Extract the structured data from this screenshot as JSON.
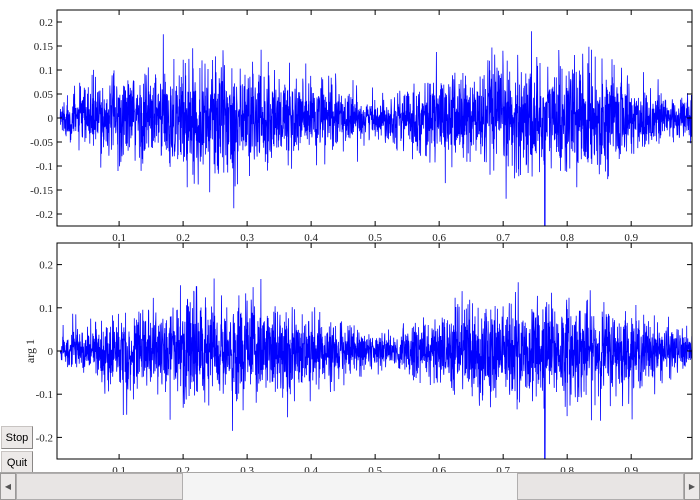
{
  "buttons": {
    "stop": "Stop",
    "quit": "Quit"
  },
  "scrollbar": {
    "left_icon": "triangle-left",
    "right_icon": "triangle-right"
  },
  "colors": {
    "signal": "#0000ff",
    "axes": "#000000",
    "background": "#ffffff"
  },
  "chart_data": [
    {
      "type": "line",
      "title": "",
      "xlabel": "",
      "ylabel": "",
      "xlim": [
        0.003,
        0.995
      ],
      "ylim": [
        -0.225,
        0.225
      ],
      "xticks": [
        "0.1",
        "0.2",
        "0.3",
        "0.4",
        "0.5",
        "0.6",
        "0.7",
        "0.8",
        "0.9"
      ],
      "yticks": [
        "0.2",
        "0.15",
        "0.1",
        "0.05",
        "0",
        "-0.05",
        "-0.1",
        "-0.15",
        "-0.2"
      ],
      "ytick_values": [
        0.2,
        0.15,
        0.1,
        0.05,
        0,
        -0.05,
        -0.1,
        -0.15,
        -0.2
      ],
      "grid": false,
      "series": [
        {
          "description_peaks_x": [
            0.25,
            0.75
          ],
          "envelope_min_x": [
            0.0,
            0.5
          ],
          "peak_amplitude": 0.2,
          "min_amplitude": 0.02,
          "extreme_negative": -0.225
        }
      ]
    },
    {
      "type": "line",
      "title": "",
      "xlabel": "",
      "ylabel": "arg 1",
      "xlim": [
        0.003,
        0.995
      ],
      "ylim": [
        -0.25,
        0.25
      ],
      "xticks": [
        "0.1",
        "0.2",
        "0.3",
        "0.4",
        "0.5",
        "0.6",
        "0.7",
        "0.8",
        "0.9"
      ],
      "yticks": [
        "0.2",
        "0.1",
        "0",
        "-0.1",
        "-0.2"
      ],
      "ytick_values": [
        0.2,
        0.1,
        0,
        -0.1,
        -0.2
      ],
      "grid": false,
      "series": [
        {
          "description_peaks_x": [
            0.25,
            0.75
          ],
          "envelope_min_x": [
            0.0,
            0.5
          ],
          "peak_amplitude": 0.21,
          "min_amplitude": 0.02,
          "extreme_negative": -0.25
        }
      ]
    }
  ]
}
